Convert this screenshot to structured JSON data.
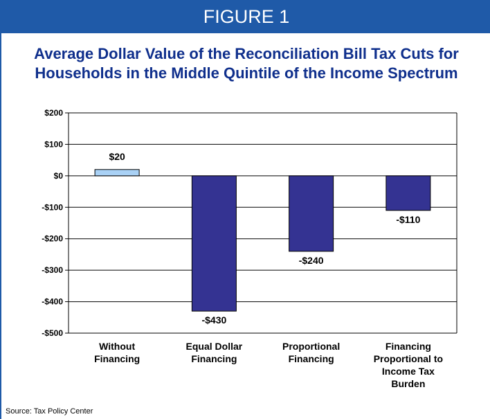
{
  "banner": {
    "label": "FIGURE 1"
  },
  "title": {
    "line1": "Average Dollar Value of the Reconciliation Bill Tax Cuts for",
    "line2": "Households in the Middle Quintile of the Income Spectrum"
  },
  "source": "Source: Tax Policy Center",
  "colors": {
    "banner": "#1f5aa8",
    "title": "#0f2f8c",
    "positive_bar": "#a9d1f5",
    "negative_bar": "#343392"
  },
  "chart_data": {
    "type": "bar",
    "title": "Average Dollar Value of the Reconciliation Bill Tax Cuts for Households in the Middle Quintile of the Income Spectrum",
    "categories": [
      "Without Financing",
      "Equal Dollar Financing",
      "Proportional Financing",
      "Financing Proportional to Income Tax Burden"
    ],
    "category_lines": [
      [
        "Without",
        "Financing"
      ],
      [
        "Equal Dollar",
        "Financing"
      ],
      [
        "Proportional",
        "Financing"
      ],
      [
        "Financing",
        "Proportional to",
        "Income Tax",
        "Burden"
      ]
    ],
    "values": [
      20,
      -430,
      -240,
      -110
    ],
    "value_labels": [
      "$20",
      "-$430",
      "-$240",
      "-$110"
    ],
    "ylim": [
      -500,
      200
    ],
    "yticks": [
      200,
      100,
      0,
      -100,
      -200,
      -300,
      -400,
      -500
    ],
    "ytick_labels": [
      "$200",
      "$100",
      "$0",
      "-$100",
      "-$200",
      "-$300",
      "-$400",
      "-$500"
    ],
    "grid": true,
    "xlabel": "",
    "ylabel": ""
  }
}
